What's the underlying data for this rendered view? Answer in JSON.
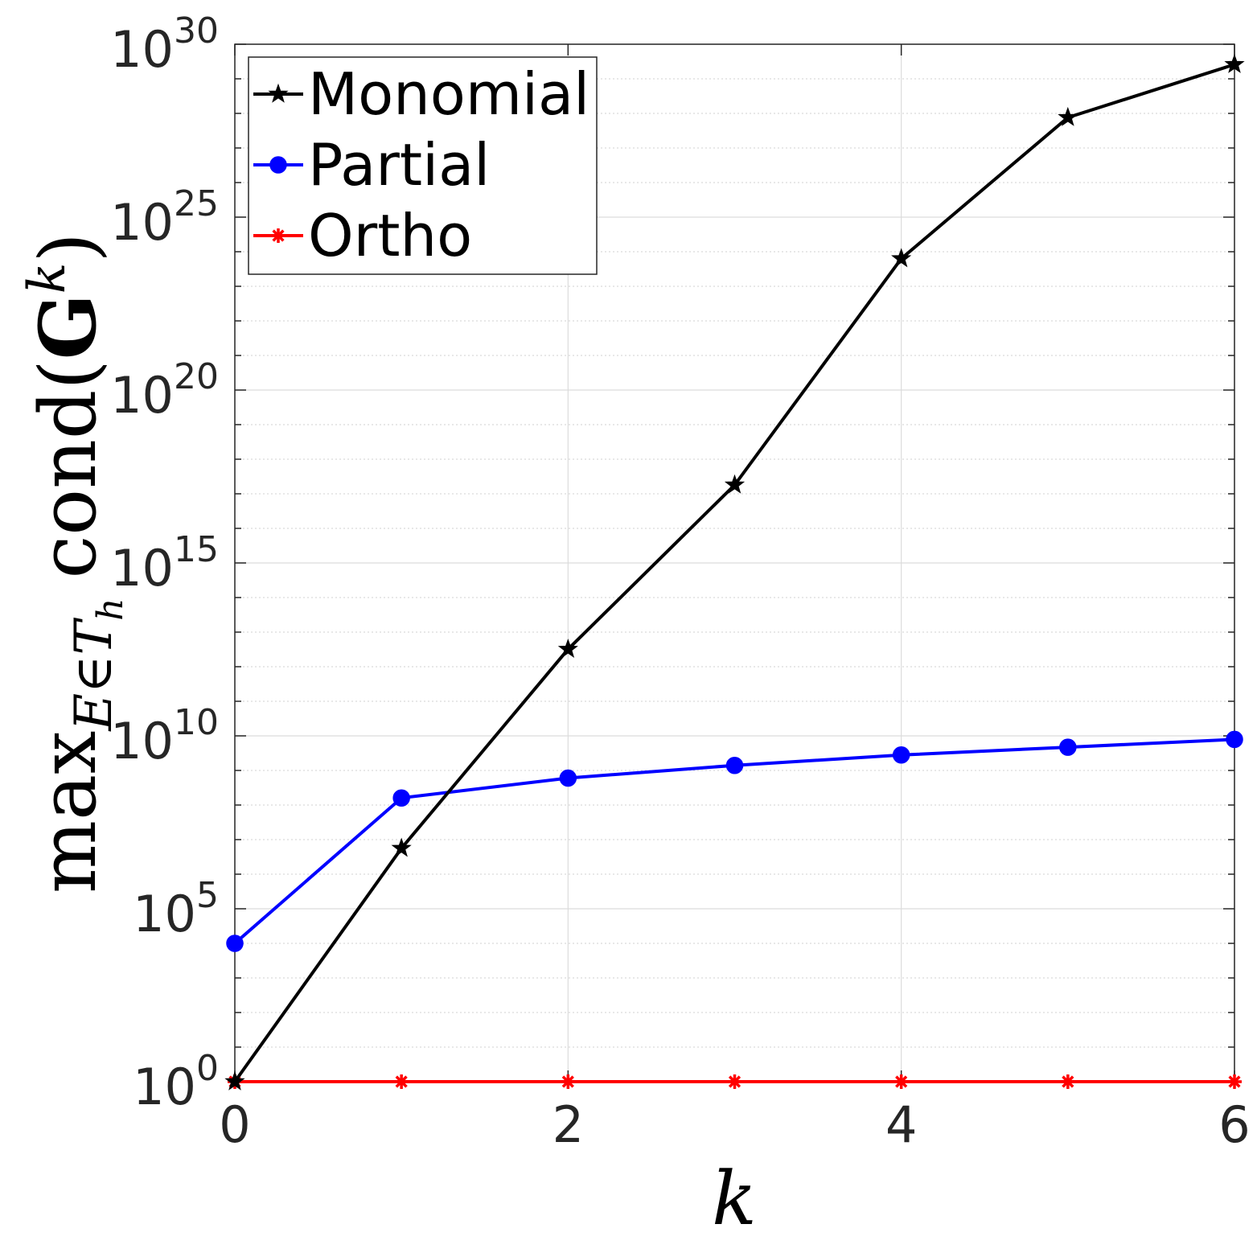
{
  "chart_data": {
    "type": "line",
    "x": [
      0,
      1,
      2,
      3,
      4,
      5,
      6
    ],
    "xlim": [
      0,
      6
    ],
    "ylim": [
      1,
      1e+30
    ],
    "yscale": "log",
    "xlabel": "k",
    "ylabel": "max_{E∈T_h} cond(G^k)",
    "ylabel_parts": {
      "func": "max",
      "sub": "E∈T",
      "subsub": "h",
      "cond": "cond(",
      "mat": "G",
      "sup": "k",
      "close": ")"
    },
    "xticks": [
      "0",
      "2",
      "4",
      "6"
    ],
    "yticks": [
      {
        "base": "10",
        "exp": "0",
        "value": 1
      },
      {
        "base": "10",
        "exp": "5",
        "value": 100000.0
      },
      {
        "base": "10",
        "exp": "10",
        "value": 10000000000.0
      },
      {
        "base": "10",
        "exp": "15",
        "value": 1000000000000000.0
      },
      {
        "base": "10",
        "exp": "20",
        "value": 1e+20
      },
      {
        "base": "10",
        "exp": "25",
        "value": 1e+25
      },
      {
        "base": "10",
        "exp": "30",
        "value": 1e+30
      }
    ],
    "grid": true,
    "legend": "top-left",
    "series": [
      {
        "name": "Monomial",
        "color": "#000000",
        "marker": "star-icon",
        "values": [
          1,
          5600000.0,
          3200000000000.0,
          1.8e+17,
          6.3e+23,
          7.6e+27,
          2.6e+29
        ]
      },
      {
        "name": "Partial",
        "color": "#0000ff",
        "marker": "circle-icon",
        "values": [
          10000.0,
          160000000.0,
          600000000.0,
          1400000000.0,
          2800000000.0,
          4700000000.0,
          7900000000.0
        ]
      },
      {
        "name": "Ortho",
        "color": "#ff0000",
        "marker": "asterisk-icon",
        "values": [
          1,
          1,
          1,
          1,
          1,
          1,
          1
        ]
      }
    ]
  }
}
